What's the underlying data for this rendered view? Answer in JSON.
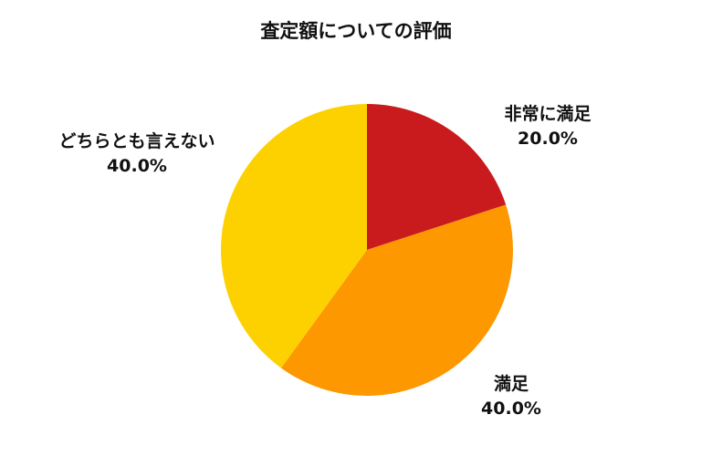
{
  "chart_data": {
    "type": "pie",
    "title": "査定額についての評価",
    "categories": [
      "非常に満足",
      "満足",
      "どちらとも言えない"
    ],
    "values": [
      20.0,
      40.0,
      40.0
    ],
    "value_labels": [
      "20.0%",
      "40.0%",
      "40.0%"
    ],
    "colors": [
      "#c91a1e",
      "#fd9800",
      "#fdd100"
    ],
    "start": "12 o'clock",
    "direction": "clockwise",
    "legend": "none"
  }
}
